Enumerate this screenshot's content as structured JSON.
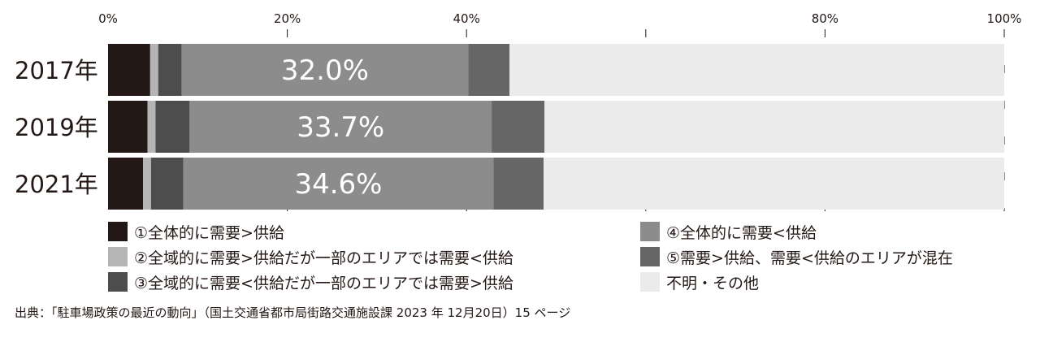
{
  "chart_data": {
    "type": "bar",
    "orientation": "horizontal",
    "stacked": true,
    "categories": [
      "2017年",
      "2019年",
      "2021年"
    ],
    "x_ticks": [
      "0%",
      "20%",
      "40%",
      "",
      "80%",
      "100%"
    ],
    "xlim": [
      0,
      100
    ],
    "series": [
      {
        "name": "①全体的に需要>供給",
        "color": "#231815",
        "values": [
          4.7,
          4.4,
          3.9
        ]
      },
      {
        "name": "②全域的に需要>供給だが一部のエリアでは需要<供給",
        "color": "#b5b5b5",
        "values": [
          0.9,
          0.9,
          0.9
        ]
      },
      {
        "name": "③全域的に需要<供給だが一部のエリアでは需要>供給",
        "color": "#4d4d4d",
        "values": [
          2.6,
          3.8,
          3.6
        ]
      },
      {
        "name": "④全体的に需要<供給",
        "color": "#8c8c8c",
        "values": [
          32.0,
          33.7,
          34.6
        ]
      },
      {
        "name": "⑤需要>供給、需要<供給のエリアが混在",
        "color": "#666666",
        "values": [
          4.6,
          5.9,
          5.6
        ]
      },
      {
        "name": "不明・その他",
        "color": "#ebebeb",
        "values": [
          55.2,
          51.3,
          51.4
        ]
      }
    ],
    "data_labels": [
      "32.0%",
      "33.7%",
      "34.6%"
    ],
    "grid": true,
    "legend_position": "bottom"
  },
  "source": "出典：「駐車場政策の最近の動向」（国土交通省都市局街路交通施設課 2023 年 12月20日）15 ページ"
}
